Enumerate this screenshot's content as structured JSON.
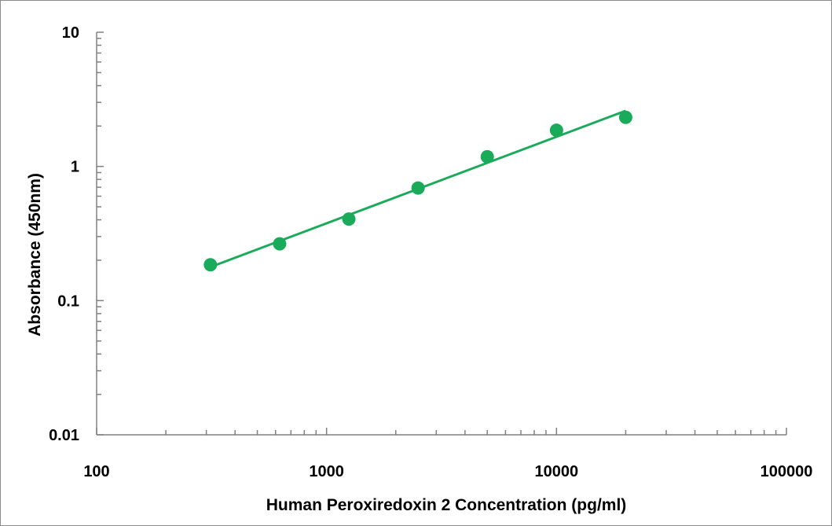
{
  "chart_data": {
    "type": "scatter",
    "title": "",
    "xlabel": "Human Peroxiredoxin 2 Concentration (pg/ml)",
    "ylabel": "Absorbance (450nm)",
    "x_scale": "log",
    "y_scale": "log",
    "xlim": [
      100,
      100000
    ],
    "ylim": [
      0.01,
      10
    ],
    "x_tick_labels": [
      "100",
      "1000",
      "10000",
      "100000"
    ],
    "y_tick_labels": [
      "10",
      "1",
      "0.1",
      "0.01"
    ],
    "grid": false,
    "legend": "none",
    "series": [
      {
        "x": [
          312.5,
          625,
          1250,
          2500,
          5000,
          10000,
          20000
        ],
        "y": [
          0.185,
          0.265,
          0.405,
          0.69,
          1.18,
          1.86,
          2.32
        ],
        "color": "#1aab5a",
        "marker": "circle"
      }
    ],
    "trendline": {
      "type": "power",
      "x": [
        312.5,
        20000
      ],
      "y": [
        0.178,
        2.6
      ],
      "color": "#1aab5a"
    }
  }
}
